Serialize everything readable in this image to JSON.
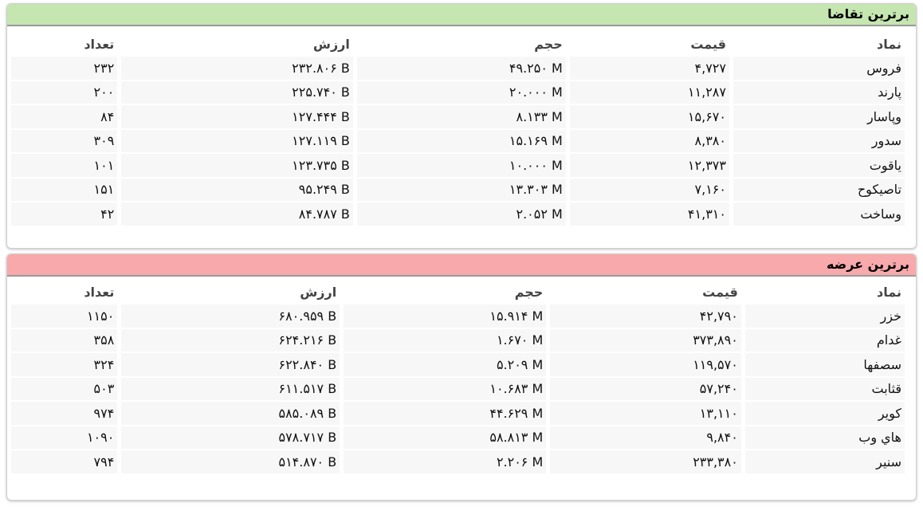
{
  "demand": {
    "title": "برترین تقاضا",
    "columns": [
      "نماد",
      "قیمت",
      "حجم",
      "ارزش",
      "تعداد"
    ],
    "rows": [
      [
        "فروس",
        "۴,۷۲۷",
        "۴۹.۲۵۰ M",
        "۲۳۲.۸۰۶ B",
        "۲۳۲"
      ],
      [
        "پارند",
        "۱۱,۲۸۷",
        "۲۰.۰۰۰ M",
        "۲۲۵.۷۴۰ B",
        "۲۰۰"
      ],
      [
        "وپاسار",
        "۱۵,۶۷۰",
        "۸.۱۳۳ M",
        "۱۲۷.۴۴۴ B",
        "۸۴"
      ],
      [
        "سدور",
        "۸,۳۸۰",
        "۱۵.۱۶۹ M",
        "۱۲۷.۱۱۹ B",
        "۳۰۹"
      ],
      [
        "یاقوت",
        "۱۲,۳۷۳",
        "۱۰.۰۰۰ M",
        "۱۲۳.۷۳۵ B",
        "۱۰۱"
      ],
      [
        "تاصیکوح",
        "۷,۱۶۰",
        "۱۳.۳۰۳ M",
        "۹۵.۲۴۹ B",
        "۱۵۱"
      ],
      [
        "وساخت",
        "۴۱,۳۱۰",
        "۲.۰۵۲ M",
        "۸۴.۷۸۷ B",
        "۴۲"
      ]
    ]
  },
  "supply": {
    "title": "برترین عرضه",
    "columns": [
      "نماد",
      "قیمت",
      "حجم",
      "ارزش",
      "تعداد"
    ],
    "rows": [
      [
        "خزر",
        "۴۲,۷۹۰",
        "۱۵.۹۱۴ M",
        "۶۸۰.۹۵۹ B",
        "۱۱۵۰"
      ],
      [
        "غدام",
        "۳۷۳,۸۹۰",
        "۱.۶۷۰ M",
        "۶۲۴.۲۱۶ B",
        "۳۵۸"
      ],
      [
        "سصفها",
        "۱۱۹,۵۷۰",
        "۵.۲۰۹ M",
        "۶۲۲.۸۴۰ B",
        "۳۲۴"
      ],
      [
        "قثابت",
        "۵۷,۲۴۰",
        "۱۰.۶۸۳ M",
        "۶۱۱.۵۱۷ B",
        "۵۰۳"
      ],
      [
        "کویر",
        "۱۳,۱۱۰",
        "۴۴.۶۲۹ M",
        "۵۸۵.۰۸۹ B",
        "۹۷۴"
      ],
      [
        "هاي وب",
        "۹,۸۴۰",
        "۵۸.۸۱۳ M",
        "۵۷۸.۷۱۷ B",
        "۱۰۹۰"
      ],
      [
        "سنیر",
        "۲۳۳,۳۸۰",
        "۲.۲۰۶ M",
        "۵۱۴.۸۷۰ B",
        "۷۹۴"
      ]
    ]
  }
}
